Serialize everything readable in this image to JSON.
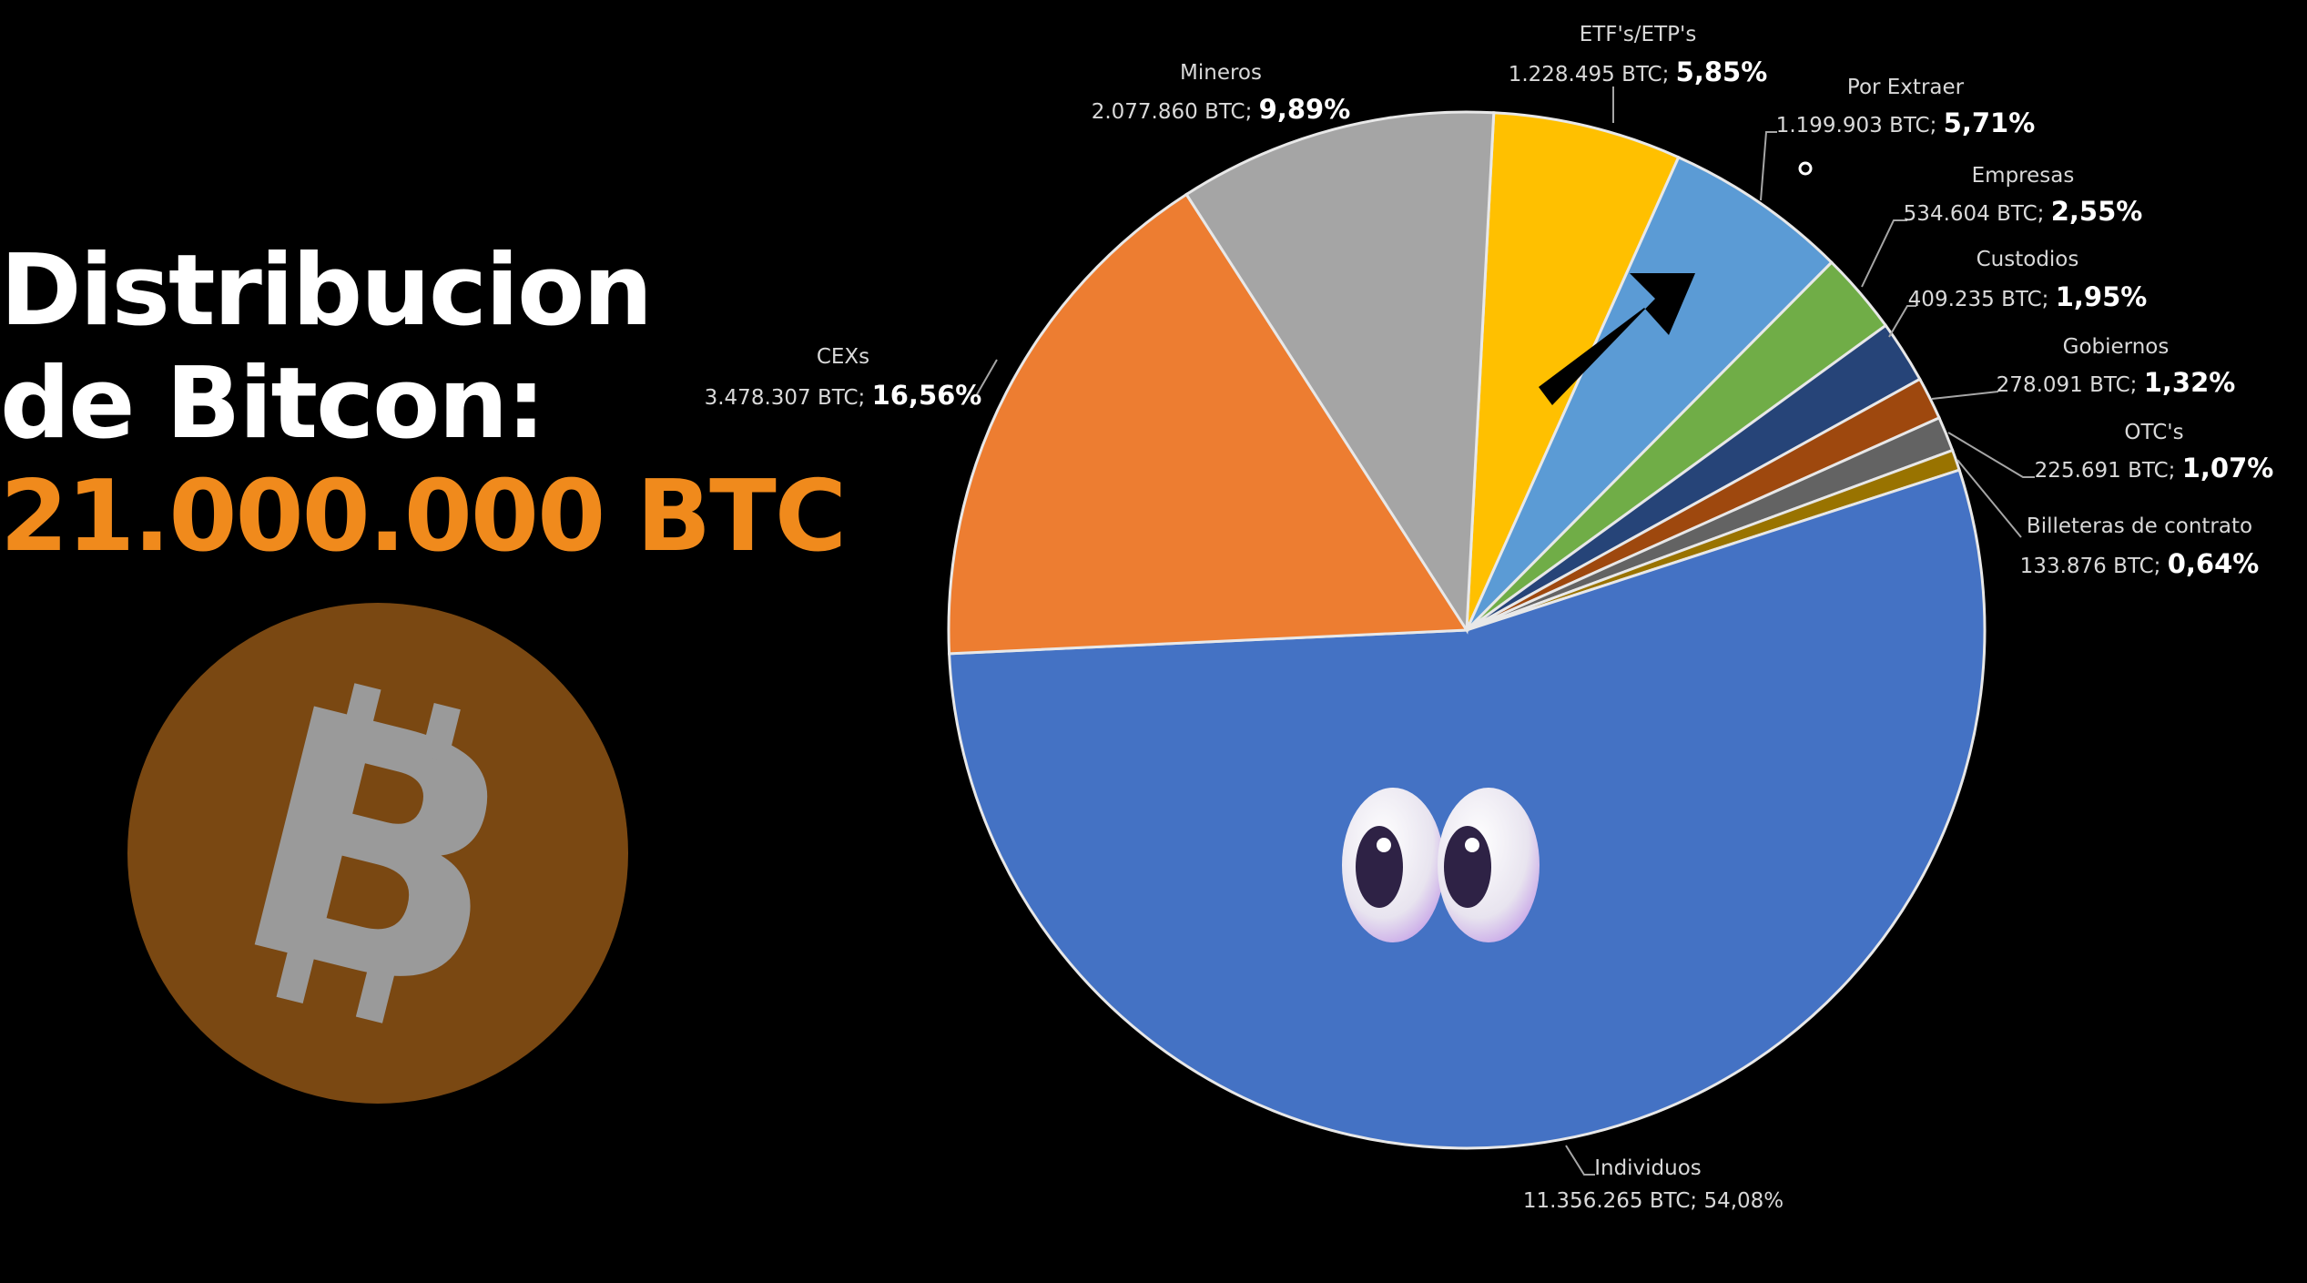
{
  "heading": {
    "line1": "Distribucion",
    "line2": "de Bitcon:",
    "line3": "21.000.000 BTC"
  },
  "colors": {
    "accent": "#F08A1C",
    "coin": "#7A4812",
    "coin_symbol": "#9a9a9a",
    "background": "#000000"
  },
  "icons": [
    "bitcoin-logo-icon",
    "arrow-up-right-icon",
    "eyes-emoji-icon",
    "cursor-icon"
  ],
  "chart_data": {
    "type": "pie",
    "unit": "BTC",
    "slices": [
      {
        "label": "ETF's/ETP's",
        "btc_text": "1.228.495 BTC; ",
        "pct_text": "5,85%",
        "value": 1228495,
        "percent": 5.85,
        "color": "#FFC000"
      },
      {
        "label": "Por Extraer",
        "btc_text": "1.199.903 BTC; ",
        "pct_text": "5,71%",
        "value": 1199903,
        "percent": 5.71,
        "color": "#5B9BD5"
      },
      {
        "label": "Empresas",
        "btc_text": "534.604 BTC; ",
        "pct_text": "2,55%",
        "value": 534604,
        "percent": 2.55,
        "color": "#70AD47"
      },
      {
        "label": "Custodios",
        "btc_text": "409.235 BTC; ",
        "pct_text": "1,95%",
        "value": 409235,
        "percent": 1.95,
        "color": "#264478"
      },
      {
        "label": "Gobiernos",
        "btc_text": "278.091 BTC; ",
        "pct_text": "1,32%",
        "value": 278091,
        "percent": 1.32,
        "color": "#9E480E"
      },
      {
        "label": "OTC's",
        "btc_text": "225.691 BTC; ",
        "pct_text": "1,07%",
        "value": 225691,
        "percent": 1.07,
        "color": "#636363"
      },
      {
        "label": "Billeteras de contrato",
        "btc_text": "133.876 BTC; ",
        "pct_text": "0,64%",
        "value": 133876,
        "percent": 0.64,
        "color": "#997300"
      },
      {
        "label": "Individuos",
        "btc_text": "11.356.265 BTC; ",
        "pct_text": "54,08%",
        "value": 11356265,
        "percent": 54.08,
        "color": "#4472C4"
      },
      {
        "label": "CEXs",
        "btc_text": "3.478.307 BTC; ",
        "pct_text": "16,56%",
        "value": 3478307,
        "percent": 16.56,
        "color": "#ED7D31"
      },
      {
        "label": "Mineros",
        "btc_text": "2.077.860 BTC; ",
        "pct_text": "9,89%",
        "value": 2077860,
        "percent": 9.89,
        "color": "#A5A5A5"
      }
    ]
  }
}
